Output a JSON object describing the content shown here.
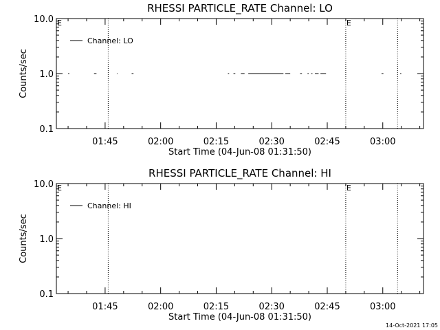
{
  "chart_data": [
    {
      "type": "line",
      "title": "RHESSI PARTICLE_RATE Channel: LO",
      "xlabel": "Start Time (04-Jun-08 01:31:50)",
      "ylabel": "Counts/sec",
      "yscale": "log",
      "ylim": [
        0.1,
        10.0
      ],
      "xlim": [
        "01:31:50",
        "03:11:00"
      ],
      "x_ticks": [
        "01:45",
        "02:00",
        "02:15",
        "02:30",
        "02:45",
        "03:00"
      ],
      "y_ticks": [
        "0.1",
        "1.0",
        "10.0"
      ],
      "grid": false,
      "legend_position": "top-left",
      "series": [
        {
          "name": "Channel: LO",
          "segments": [
            {
              "start": "01:35:00",
              "end": "01:35:20",
              "value": 1.0
            },
            {
              "start": "01:42:00",
              "end": "01:42:40",
              "value": 1.0
            },
            {
              "start": "01:48:10",
              "end": "01:48:20",
              "value": 1.0
            },
            {
              "start": "01:52:10",
              "end": "01:52:40",
              "value": 1.0
            },
            {
              "start": "02:18:10",
              "end": "02:18:30",
              "value": 1.0
            },
            {
              "start": "02:19:40",
              "end": "02:20:10",
              "value": 1.0
            },
            {
              "start": "02:21:40",
              "end": "02:22:40",
              "value": 1.0
            },
            {
              "start": "02:23:40",
              "end": "02:33:10",
              "value": 1.0
            },
            {
              "start": "02:33:40",
              "end": "02:35:00",
              "value": 1.0
            },
            {
              "start": "02:37:40",
              "end": "02:38:10",
              "value": 1.0
            },
            {
              "start": "02:39:40",
              "end": "02:40:00",
              "value": 1.0
            },
            {
              "start": "02:40:40",
              "end": "02:41:00",
              "value": 1.0
            },
            {
              "start": "02:41:40",
              "end": "02:42:40",
              "value": 1.0
            },
            {
              "start": "02:43:10",
              "end": "02:44:40",
              "value": 1.0
            },
            {
              "start": "02:59:40",
              "end": "03:00:10",
              "value": 1.0
            },
            {
              "start": "03:04:40",
              "end": "03:05:00",
              "value": 1.0
            }
          ]
        }
      ],
      "vlines": [
        "01:45:50",
        "02:50:00",
        "03:04:00"
      ],
      "markers": [
        {
          "label": "E",
          "at": "01:31:50"
        },
        {
          "label": "E",
          "at": "02:50:00"
        }
      ]
    },
    {
      "type": "line",
      "title": "RHESSI PARTICLE_RATE Channel: HI",
      "xlabel": "Start Time (04-Jun-08 01:31:50)",
      "ylabel": "Counts/sec",
      "yscale": "log",
      "ylim": [
        0.1,
        10.0
      ],
      "xlim": [
        "01:31:50",
        "03:11:00"
      ],
      "x_ticks": [
        "01:45",
        "02:00",
        "02:15",
        "02:30",
        "02:45",
        "03:00"
      ],
      "y_ticks": [
        "0.1",
        "1.0",
        "10.0"
      ],
      "grid": false,
      "legend_position": "top-left",
      "series": [
        {
          "name": "Channel: HI",
          "segments": []
        }
      ],
      "vlines": [
        "01:45:50",
        "02:50:00",
        "03:04:00"
      ],
      "markers": [
        {
          "label": "E",
          "at": "01:31:50"
        },
        {
          "label": "E",
          "at": "02:50:00"
        }
      ]
    }
  ],
  "timestamp": "14-Oct-2021 17:05"
}
